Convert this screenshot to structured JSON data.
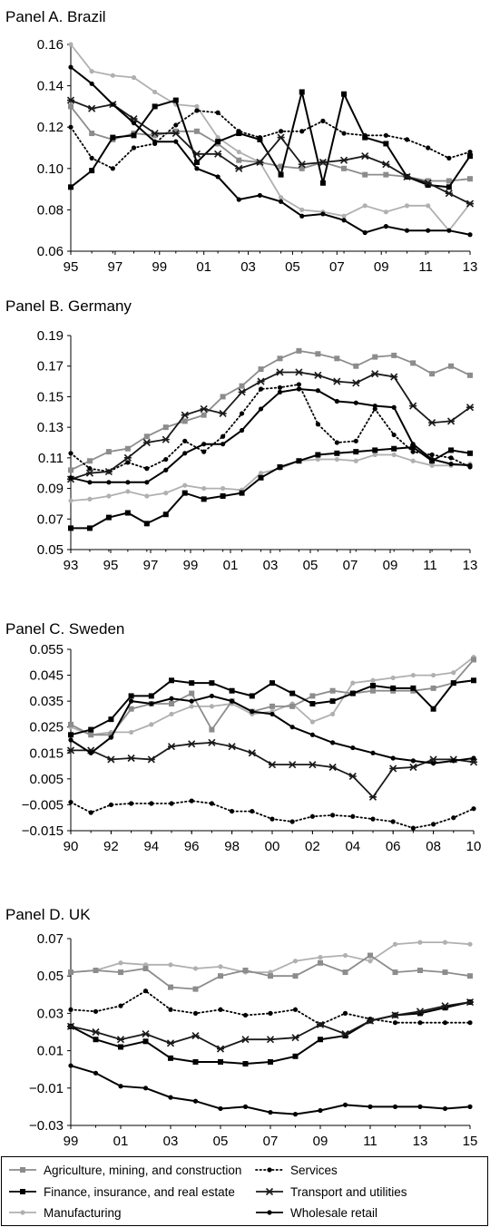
{
  "chart_data": [
    {
      "type": "line",
      "title": "Panel A. Brazil",
      "x": [
        95,
        96,
        97,
        98,
        99,
        100,
        101,
        102,
        103,
        104,
        105,
        106,
        107,
        108,
        109,
        110,
        111,
        112,
        113,
        114
      ],
      "xticks": [
        "95",
        "97",
        "99",
        "01",
        "03",
        "05",
        "07",
        "09",
        "11",
        "13"
      ],
      "yticks": [
        "0.16",
        "0.14",
        "0.12",
        "0.10",
        "0.08",
        "0.06"
      ],
      "ylim": [
        0.06,
        0.16
      ],
      "series": [
        {
          "name": "Agriculture, mining, and construction",
          "values": [
            0.13,
            0.117,
            0.114,
            0.117,
            0.116,
            0.118,
            0.118,
            0.112,
            0.104,
            0.103,
            0.101,
            0.1,
            0.103,
            0.1,
            0.097,
            0.097,
            0.096,
            0.094,
            0.094,
            0.095
          ]
        },
        {
          "name": "Services",
          "values": [
            0.12,
            0.105,
            0.1,
            0.11,
            0.112,
            0.121,
            0.128,
            0.127,
            0.118,
            0.115,
            0.118,
            0.118,
            0.123,
            0.117,
            0.116,
            0.116,
            0.114,
            0.11,
            0.105,
            0.108
          ]
        },
        {
          "name": "Finance, insurance, and real estate",
          "values": [
            0.091,
            0.099,
            0.115,
            0.116,
            0.13,
            0.133,
            0.103,
            0.113,
            0.117,
            0.114,
            0.097,
            0.137,
            0.093,
            0.136,
            0.115,
            0.112,
            0.096,
            0.092,
            0.091,
            0.106
          ]
        },
        {
          "name": "Transport and utilities",
          "values": [
            0.133,
            0.129,
            0.131,
            0.124,
            0.117,
            0.117,
            0.107,
            0.107,
            0.1,
            0.103,
            0.115,
            0.102,
            0.103,
            0.104,
            0.106,
            0.102,
            0.096,
            0.093,
            0.088,
            0.083
          ]
        },
        {
          "name": "Manufacturing",
          "values": [
            0.16,
            0.147,
            0.145,
            0.144,
            0.137,
            0.131,
            0.13,
            0.115,
            0.108,
            0.103,
            0.086,
            0.08,
            0.079,
            0.077,
            0.082,
            0.079,
            0.082,
            0.082,
            0.07,
            0.083
          ]
        },
        {
          "name": "Wholesale retail",
          "values": [
            0.149,
            0.141,
            0.131,
            0.122,
            0.113,
            0.113,
            0.1,
            0.096,
            0.085,
            0.087,
            0.084,
            0.077,
            0.078,
            0.075,
            0.069,
            0.072,
            0.07,
            0.07,
            0.07,
            0.068
          ]
        }
      ]
    },
    {
      "type": "line",
      "title": "Panel B. Germany",
      "x": [
        93,
        94,
        95,
        96,
        97,
        98,
        99,
        100,
        101,
        102,
        103,
        104,
        105,
        106,
        107,
        108,
        109,
        110,
        111,
        112,
        113,
        114
      ],
      "xticks": [
        "93",
        "95",
        "97",
        "99",
        "01",
        "03",
        "05",
        "07",
        "09",
        "11",
        "13"
      ],
      "yticks": [
        "0.19",
        "0.17",
        "0.15",
        "0.13",
        "0.11",
        "0.09",
        "0.07",
        "0.05"
      ],
      "ylim": [
        0.05,
        0.19
      ],
      "series": [
        {
          "name": "Agriculture, mining, and construction",
          "values": [
            0.102,
            0.108,
            0.114,
            0.116,
            0.124,
            0.13,
            0.134,
            0.138,
            0.15,
            0.157,
            0.168,
            0.175,
            0.18,
            0.178,
            0.175,
            0.17,
            0.176,
            0.177,
            0.172,
            0.165,
            0.17,
            0.164
          ]
        },
        {
          "name": "Services",
          "values": [
            0.113,
            0.103,
            0.101,
            0.107,
            0.103,
            0.109,
            0.121,
            0.114,
            0.124,
            0.139,
            0.155,
            0.156,
            0.158,
            0.132,
            0.12,
            0.121,
            0.142,
            0.125,
            0.114,
            0.112,
            0.11,
            0.104
          ]
        },
        {
          "name": "Finance, insurance, and real estate",
          "values": [
            0.064,
            0.064,
            0.071,
            0.074,
            0.067,
            0.073,
            0.087,
            0.083,
            0.085,
            0.087,
            0.097,
            0.104,
            0.108,
            0.112,
            0.113,
            0.114,
            0.115,
            0.116,
            0.117,
            0.108,
            0.115,
            0.113
          ]
        },
        {
          "name": "Transport and utilities",
          "values": [
            0.096,
            0.1,
            0.101,
            0.11,
            0.12,
            0.122,
            0.138,
            0.142,
            0.139,
            0.153,
            0.16,
            0.166,
            0.166,
            0.164,
            0.16,
            0.159,
            0.165,
            0.163,
            0.144,
            0.133,
            0.134,
            0.143
          ]
        },
        {
          "name": "Manufacturing",
          "values": [
            0.082,
            0.083,
            0.085,
            0.088,
            0.085,
            0.087,
            0.092,
            0.09,
            0.09,
            0.089,
            0.1,
            0.103,
            0.108,
            0.109,
            0.109,
            0.108,
            0.112,
            0.112,
            0.108,
            0.105,
            0.105,
            0.106
          ]
        },
        {
          "name": "Wholesale retail",
          "values": [
            0.097,
            0.094,
            0.094,
            0.094,
            0.094,
            0.102,
            0.113,
            0.119,
            0.119,
            0.128,
            0.142,
            0.153,
            0.155,
            0.154,
            0.147,
            0.146,
            0.144,
            0.143,
            0.119,
            0.109,
            0.106,
            0.105
          ]
        }
      ]
    },
    {
      "type": "line",
      "title": "Panel C. Sweden",
      "x": [
        90,
        91,
        92,
        93,
        94,
        95,
        96,
        97,
        98,
        99,
        100,
        101,
        102,
        103,
        104,
        105,
        106,
        107,
        108,
        109,
        110
      ],
      "xticks": [
        "90",
        "92",
        "94",
        "96",
        "98",
        "00",
        "02",
        "04",
        "06",
        "08",
        "10"
      ],
      "yticks": [
        "0.055",
        "0.045",
        "0.035",
        "0.025",
        "0.015",
        "0.005",
        "−0.005",
        "−0.015"
      ],
      "ylim": [
        -0.015,
        0.055
      ],
      "series": [
        {
          "name": "Agriculture, mining, and construction",
          "values": [
            0.026,
            0.022,
            0.022,
            0.032,
            0.034,
            0.034,
            0.038,
            0.024,
            0.035,
            0.031,
            0.033,
            0.033,
            0.037,
            0.039,
            0.038,
            0.039,
            0.039,
            0.039,
            0.04,
            0.042,
            0.051
          ]
        },
        {
          "name": "Services",
          "values": [
            -0.004,
            -0.008,
            -0.005,
            -0.0045,
            -0.0045,
            -0.0045,
            -0.0035,
            -0.0045,
            -0.0075,
            -0.0075,
            -0.0105,
            -0.0115,
            -0.0095,
            -0.009,
            -0.0095,
            -0.0105,
            -0.0115,
            -0.014,
            -0.0125,
            -0.01,
            -0.0065
          ]
        },
        {
          "name": "Finance, insurance, and real estate",
          "values": [
            0.022,
            0.024,
            0.028,
            0.037,
            0.037,
            0.043,
            0.042,
            0.042,
            0.039,
            0.037,
            0.042,
            0.038,
            0.034,
            0.035,
            0.038,
            0.041,
            0.04,
            0.04,
            0.032,
            0.042,
            0.043
          ]
        },
        {
          "name": "Transport and utilities",
          "values": [
            0.016,
            0.016,
            0.0125,
            0.013,
            0.0125,
            0.0175,
            0.0185,
            0.019,
            0.0175,
            0.015,
            0.0105,
            0.0105,
            0.0105,
            0.0095,
            0.006,
            -0.002,
            0.009,
            0.0095,
            0.0125,
            0.0125,
            0.0115
          ]
        },
        {
          "name": "Manufacturing",
          "values": [
            0.025,
            0.022,
            0.023,
            0.023,
            0.026,
            0.03,
            0.033,
            0.033,
            0.034,
            0.03,
            0.031,
            0.034,
            0.027,
            0.03,
            0.042,
            0.043,
            0.044,
            0.045,
            0.045,
            0.046,
            0.052
          ]
        },
        {
          "name": "Wholesale retail",
          "values": [
            0.02,
            0.015,
            0.021,
            0.035,
            0.034,
            0.036,
            0.035,
            0.037,
            0.035,
            0.031,
            0.03,
            0.025,
            0.022,
            0.019,
            0.017,
            0.015,
            0.013,
            0.012,
            0.011,
            0.012,
            0.013
          ]
        }
      ]
    },
    {
      "type": "line",
      "title": "Panel D. UK",
      "x": [
        99,
        100,
        101,
        102,
        103,
        104,
        105,
        106,
        107,
        108,
        109,
        110,
        111,
        112,
        113,
        114,
        115
      ],
      "xticks": [
        "99",
        "01",
        "03",
        "05",
        "07",
        "09",
        "11",
        "13",
        "15"
      ],
      "yticks": [
        "0.07",
        "0.05",
        "0.03",
        "0.01",
        "−0.01",
        "−0.03"
      ],
      "ylim": [
        -0.03,
        0.07
      ],
      "series": [
        {
          "name": "Agriculture, mining, and construction",
          "values": [
            0.052,
            0.053,
            0.052,
            0.054,
            0.044,
            0.043,
            0.05,
            0.053,
            0.05,
            0.05,
            0.057,
            0.052,
            0.061,
            0.052,
            0.053,
            0.052,
            0.05
          ]
        },
        {
          "name": "Services",
          "values": [
            0.032,
            0.031,
            0.034,
            0.042,
            0.032,
            0.03,
            0.032,
            0.029,
            0.03,
            0.032,
            0.024,
            0.03,
            0.027,
            0.025,
            0.025,
            0.025,
            0.025
          ]
        },
        {
          "name": "Finance, insurance, and real estate",
          "values": [
            0.023,
            0.016,
            0.012,
            0.015,
            0.006,
            0.004,
            0.004,
            0.003,
            0.004,
            0.007,
            0.016,
            0.018,
            0.026,
            0.029,
            0.03,
            0.033,
            0.036
          ]
        },
        {
          "name": "Transport and utilities",
          "values": [
            0.023,
            0.02,
            0.016,
            0.019,
            0.014,
            0.018,
            0.011,
            0.016,
            0.016,
            0.017,
            0.024,
            0.019,
            0.026,
            0.029,
            0.031,
            0.034,
            0.036
          ]
        },
        {
          "name": "Manufacturing",
          "values": [
            0.052,
            0.053,
            0.057,
            0.056,
            0.056,
            0.054,
            0.055,
            0.052,
            0.052,
            0.058,
            0.06,
            0.061,
            0.058,
            0.067,
            0.068,
            0.068,
            0.067
          ]
        },
        {
          "name": "Wholesale retail",
          "values": [
            0.002,
            -0.002,
            -0.009,
            -0.01,
            -0.015,
            -0.017,
            -0.021,
            -0.02,
            -0.023,
            -0.024,
            -0.022,
            -0.019,
            -0.02,
            -0.02,
            -0.02,
            -0.021,
            -0.02
          ]
        }
      ]
    }
  ],
  "legend": [
    {
      "label": "Agriculture, mining, and construction",
      "color": "#8c8c8c",
      "marker": "square",
      "dash": "solid"
    },
    {
      "label": "Services",
      "color": "#000000",
      "marker": "dot",
      "dash": "dotted"
    },
    {
      "label": "Finance, insurance, and real estate",
      "color": "#000000",
      "marker": "square",
      "dash": "solid"
    },
    {
      "label": "Transport and utilities",
      "color": "#1a1a1a",
      "marker": "star",
      "dash": "solid"
    },
    {
      "label": "Manufacturing",
      "color": "#b0b0b0",
      "marker": "dot",
      "dash": "solid"
    },
    {
      "label": "Wholesale retail",
      "color": "#000000",
      "marker": "dot",
      "dash": "solid"
    }
  ]
}
